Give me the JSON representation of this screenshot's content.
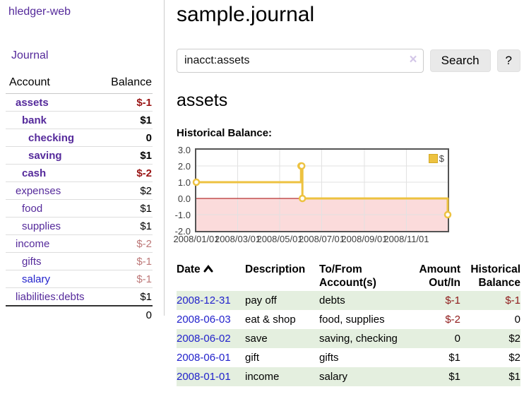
{
  "colors": {
    "link_purple": "#552a9b",
    "link_blue": "#2222cc",
    "negative_strong": "#991414",
    "negative_soft": "#bd7878",
    "register_negative": "#8f1a1a",
    "row_shade_green": "#e4efdf",
    "chart_series_gold": "#edc240",
    "chart_zero_line_red": "#a40000",
    "chart_negative_fill_pink": "#fbdbdb"
  },
  "sidebar": {
    "brand": "hledger-web",
    "journal_link": "Journal",
    "accounts_table": {
      "headers": {
        "account": "Account",
        "balance": "Balance"
      },
      "rows": [
        {
          "name": "assets",
          "indent": 1,
          "bold": true,
          "link": "purple",
          "balance": "$-1",
          "balance_style": "neg-strong"
        },
        {
          "name": "bank",
          "indent": 2,
          "bold": true,
          "link": "purple",
          "balance": "$1",
          "balance_style": "pos"
        },
        {
          "name": "checking",
          "indent": 3,
          "bold": true,
          "link": "purple",
          "balance": "0",
          "balance_style": "pos"
        },
        {
          "name": "saving",
          "indent": 3,
          "bold": true,
          "link": "purple",
          "balance": "$1",
          "balance_style": "pos"
        },
        {
          "name": "cash",
          "indent": 2,
          "bold": true,
          "link": "purple",
          "balance": "$-2",
          "balance_style": "neg-strong"
        },
        {
          "name": "expenses",
          "indent": 1,
          "bold": false,
          "link": "purple",
          "balance": "$2",
          "balance_style": "pos"
        },
        {
          "name": "food",
          "indent": 2,
          "bold": false,
          "link": "purple",
          "balance": "$1",
          "balance_style": "pos"
        },
        {
          "name": "supplies",
          "indent": 2,
          "bold": false,
          "link": "purple",
          "balance": "$1",
          "balance_style": "pos"
        },
        {
          "name": "income",
          "indent": 1,
          "bold": false,
          "link": "purple",
          "balance": "$-2",
          "balance_style": "neg-soft"
        },
        {
          "name": "gifts",
          "indent": 2,
          "bold": false,
          "link": "purple",
          "balance": "$-1",
          "balance_style": "neg-soft"
        },
        {
          "name": "salary",
          "indent": 2,
          "bold": false,
          "link": "blue",
          "balance": "$-1",
          "balance_style": "neg-soft"
        },
        {
          "name": "liabilities:debts",
          "indent": 1,
          "bold": false,
          "link": "purple",
          "balance": "$1",
          "balance_style": "pos"
        }
      ],
      "total": "0"
    }
  },
  "main": {
    "title": "sample.journal",
    "search": {
      "value": "inacct:assets",
      "clear_icon": "×",
      "button_label": "Search",
      "help_label": "?"
    },
    "account_heading": "assets",
    "chart_heading": "Historical Balance:"
  },
  "chart_data": {
    "type": "line",
    "step": true,
    "title": "Historical Balance",
    "legend": [
      {
        "label": "$",
        "color": "#edc240"
      }
    ],
    "ylim": [
      -2,
      3
    ],
    "xlim_days": [
      0,
      365
    ],
    "y_ticks": [
      3.0,
      2.0,
      1.0,
      0.0,
      -1.0,
      -2.0
    ],
    "y_tick_labels": [
      "3.0",
      "2.0",
      "1.0",
      "0.0",
      "-1.0",
      "-2.0"
    ],
    "x_ticks": [
      {
        "label": "2008/01/01",
        "day": 0
      },
      {
        "label": "2008/03/01",
        "day": 60
      },
      {
        "label": "2008/05/01",
        "day": 121
      },
      {
        "label": "2008/07/01",
        "day": 182
      },
      {
        "label": "2008/09/01",
        "day": 244
      },
      {
        "label": "2008/11/01",
        "day": 305
      }
    ],
    "series": [
      {
        "name": "$",
        "points": [
          {
            "date": "2008-01-01",
            "day": 0,
            "value": 1
          },
          {
            "date": "2008-06-01",
            "day": 152,
            "value": 2
          },
          {
            "date": "2008-06-02",
            "day": 153,
            "value": 2
          },
          {
            "date": "2008-06-03",
            "day": 154,
            "value": 0
          },
          {
            "date": "2008-12-31",
            "day": 365,
            "value": -1
          }
        ]
      }
    ],
    "negative_region_filled": true,
    "grid": true,
    "legend_position": "top-right"
  },
  "register_table": {
    "headers": [
      {
        "label": "Date",
        "sort": "asc",
        "align": "left"
      },
      {
        "label": "Description",
        "align": "left"
      },
      {
        "label": "To/From Account(s)",
        "align": "left"
      },
      {
        "label": "Amount Out/In",
        "align": "right"
      },
      {
        "label": "Historical Balance",
        "align": "right"
      }
    ],
    "rows": [
      {
        "date": "2008-12-31",
        "description": "pay off",
        "accounts": "debts",
        "amount": "$-1",
        "amount_neg": true,
        "balance": "$-1",
        "balance_neg": true,
        "shaded": true
      },
      {
        "date": "2008-06-03",
        "description": "eat & shop",
        "accounts": "food, supplies",
        "amount": "$-2",
        "amount_neg": true,
        "balance": "0",
        "balance_neg": false,
        "shaded": false
      },
      {
        "date": "2008-06-02",
        "description": "save",
        "accounts": "saving, checking",
        "amount": "0",
        "amount_neg": false,
        "balance": "$2",
        "balance_neg": false,
        "shaded": true
      },
      {
        "date": "2008-06-01",
        "description": "gift",
        "accounts": "gifts",
        "amount": "$1",
        "amount_neg": false,
        "balance": "$2",
        "balance_neg": false,
        "shaded": false
      },
      {
        "date": "2008-01-01",
        "description": "income",
        "accounts": "salary",
        "amount": "$1",
        "amount_neg": false,
        "balance": "$1",
        "balance_neg": false,
        "shaded": true
      }
    ]
  }
}
